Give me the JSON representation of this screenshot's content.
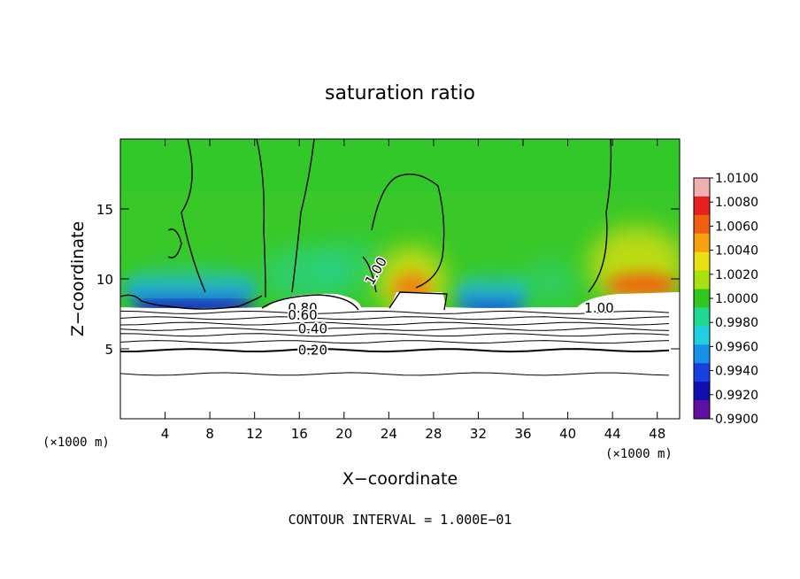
{
  "chart_data": {
    "type": "heatmap",
    "title": "saturation ratio",
    "xlabel": "X−coordinate",
    "ylabel": "Z−coordinate",
    "x_unit": "(×1000 m)",
    "z_unit": "(×1000 m)",
    "xlim": [
      0,
      50
    ],
    "ylim": [
      0,
      20
    ],
    "x_ticks": [
      4,
      8,
      12,
      16,
      20,
      24,
      28,
      32,
      36,
      40,
      44,
      48
    ],
    "y_ticks": [
      5,
      10,
      15
    ],
    "colorbar": {
      "min": 0.99,
      "max": 1.01,
      "labels": [
        "1.0100",
        "1.0080",
        "1.0060",
        "1.0040",
        "1.0020",
        "1.0000",
        "0.9980",
        "0.9960",
        "0.9940",
        "0.9920",
        "0.9900"
      ],
      "colors": [
        "#f0b0b0",
        "#e82020",
        "#f06010",
        "#f8a010",
        "#e8e010",
        "#a8e010",
        "#30c820",
        "#20d890",
        "#20d0e0",
        "#1890e8",
        "#1840e0",
        "#1010b0",
        "#6010a0"
      ]
    },
    "contour_interval": "CONTOUR INTERVAL = 1.000E−01",
    "contour_labels": [
      {
        "text": "1.00",
        "x": 23.2,
        "z": 10.4
      },
      {
        "text": "1.00",
        "x": 42.8,
        "z": 7.6
      },
      {
        "text": "0.80",
        "x": 16.3,
        "z": 7.6
      },
      {
        "text": "0.60",
        "x": 16.3,
        "z": 7.1
      },
      {
        "text": "0.40",
        "x": 17.2,
        "z": 6.1
      },
      {
        "text": "0.20",
        "x": 17.2,
        "z": 4.6
      }
    ],
    "contour_levels_z": [
      3.2,
      4.9,
      5.5,
      6.0,
      6.4,
      6.8,
      7.2,
      7.6
    ],
    "warm_spots": [
      {
        "x": 26.0,
        "z": 9.5,
        "value": 1.006
      },
      {
        "x": 46.5,
        "z": 9.4,
        "value": 1.006
      }
    ],
    "dry_spots": [
      {
        "x": 5.0,
        "z": 8.0,
        "value": 0.992
      },
      {
        "x": 9.0,
        "z": 8.0,
        "value": 0.992
      },
      {
        "x": 33.0,
        "z": 8.0,
        "value": 0.993
      }
    ]
  }
}
